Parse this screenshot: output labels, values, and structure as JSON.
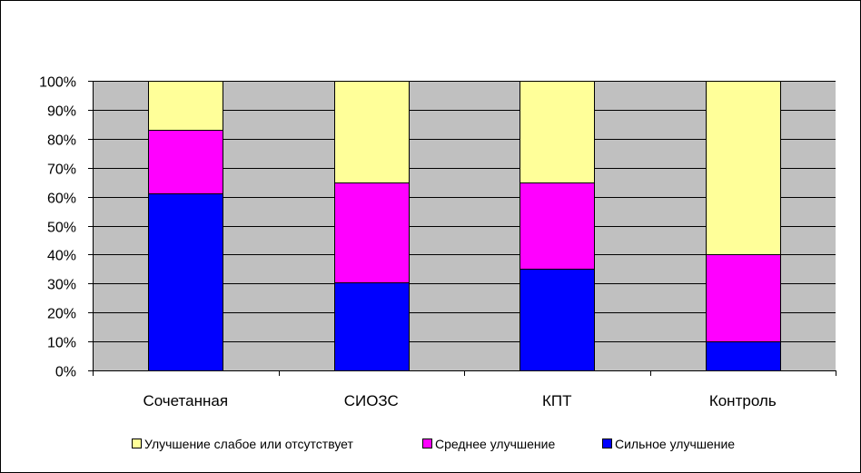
{
  "chart_data": {
    "type": "bar",
    "stacked": true,
    "title": "",
    "xlabel": "",
    "ylabel": "",
    "categories": [
      "Сочетанная",
      "СИОЗС",
      "КПТ",
      "Контроль"
    ],
    "series": [
      {
        "name": "Сильное улучшение",
        "color": "#0000FF",
        "values": [
          61,
          30.5,
          35,
          10
        ]
      },
      {
        "name": "Среднее улучшение",
        "color": "#FF00FF",
        "values": [
          22,
          34.5,
          30,
          30
        ]
      },
      {
        "name": "Улучшение слабое или отсутствует",
        "color": "#FFFF99",
        "values": [
          17,
          35,
          35,
          60
        ]
      }
    ],
    "ylim": [
      0,
      100
    ],
    "yticks": [
      "0%",
      "10%",
      "20%",
      "30%",
      "40%",
      "50%",
      "60%",
      "70%",
      "80%",
      "90%",
      "100%"
    ],
    "legend_order": [
      2,
      1,
      0
    ],
    "legend_position": "bottom",
    "plot_background": "#C0C0C0",
    "grid": true
  }
}
